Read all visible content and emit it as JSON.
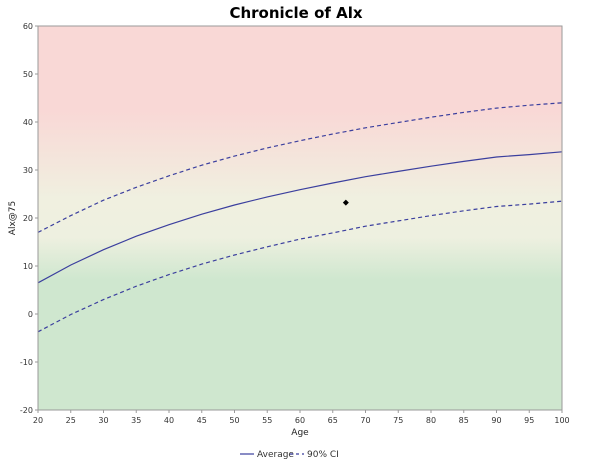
{
  "chart_data": {
    "type": "line",
    "title": "Chronicle of Alx",
    "xlabel": "Age",
    "ylabel": "Alx@75",
    "xlim": [
      20,
      100
    ],
    "ylim": [
      -20,
      60
    ],
    "x_ticks": [
      20,
      25,
      30,
      35,
      40,
      45,
      50,
      55,
      60,
      65,
      70,
      75,
      80,
      85,
      90,
      95,
      100
    ],
    "y_ticks": [
      -20,
      -10,
      0,
      10,
      20,
      30,
      40,
      50,
      60
    ],
    "grid": false,
    "legend_position": "bottom",
    "background_bands": {
      "upper": "#f9d8d6",
      "middle": "#f0f0e0",
      "lower": "#cfe7cf"
    },
    "series": [
      {
        "name": "Average",
        "style": "solid",
        "color": "#3b3f9e",
        "x": [
          20,
          25,
          30,
          35,
          40,
          45,
          50,
          55,
          60,
          65,
          70,
          75,
          80,
          85,
          90,
          95,
          100
        ],
        "y": [
          6.5,
          10.2,
          13.4,
          16.2,
          18.6,
          20.8,
          22.7,
          24.4,
          25.9,
          27.3,
          28.6,
          29.7,
          30.8,
          31.8,
          32.7,
          33.2,
          33.8
        ]
      },
      {
        "name": "90% CI",
        "style": "dashed",
        "color": "#3b3f9e",
        "x": [
          20,
          25,
          30,
          35,
          40,
          45,
          50,
          55,
          60,
          65,
          70,
          75,
          80,
          85,
          90,
          95,
          100
        ],
        "y": [
          17.0,
          20.5,
          23.7,
          26.4,
          28.8,
          31.0,
          32.9,
          34.6,
          36.1,
          37.5,
          38.8,
          39.9,
          41.0,
          42.0,
          42.9,
          43.5,
          44.0
        ]
      },
      {
        "name": "",
        "style": "dashed",
        "color": "#3b3f9e",
        "x": [
          20,
          25,
          30,
          35,
          40,
          45,
          50,
          55,
          60,
          65,
          70,
          75,
          80,
          85,
          90,
          95,
          100
        ],
        "y": [
          -3.7,
          -0.1,
          3.0,
          5.8,
          8.2,
          10.4,
          12.3,
          14.0,
          15.6,
          16.9,
          18.3,
          19.4,
          20.5,
          21.5,
          22.4,
          22.9,
          23.5
        ]
      }
    ],
    "points": [
      {
        "x": 67,
        "y": 23.2,
        "marker": "diamond",
        "color": "#000000"
      }
    ],
    "legend": [
      {
        "label": "Average",
        "style": "solid"
      },
      {
        "label": "90% CI",
        "style": "dashed"
      }
    ]
  }
}
